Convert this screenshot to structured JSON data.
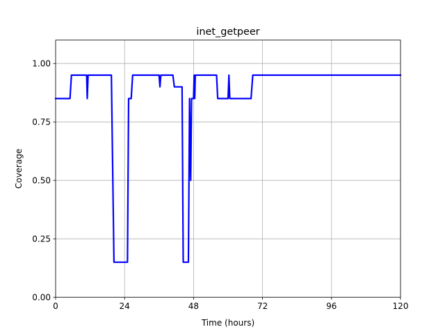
{
  "chart_data": {
    "type": "line",
    "title": "inet_getpeer",
    "xlabel": "Time (hours)",
    "ylabel": "Coverage",
    "xlim": [
      0,
      120
    ],
    "ylim": [
      0,
      1.1
    ],
    "x_ticks": [
      0,
      24,
      48,
      72,
      96,
      120
    ],
    "x_tick_labels": [
      "0",
      "24",
      "48",
      "72",
      "96",
      "120"
    ],
    "y_ticks": [
      0,
      0.25,
      0.5,
      0.75,
      1.0
    ],
    "y_tick_labels": [
      "0.00",
      "0.25",
      "0.50",
      "0.75",
      "1.00"
    ],
    "grid": true,
    "series": [
      {
        "color": "#0000ff",
        "x": [
          0,
          5,
          5.5,
          10.8,
          11,
          11.3,
          11.6,
          19.4,
          20.3,
          25,
          25.4,
          26.3,
          26.8,
          36,
          36.3,
          36.6,
          40.8,
          41.3,
          44,
          44.4,
          46.2,
          46.6,
          47,
          47.3,
          47.6,
          48,
          48.2,
          48.4,
          48.6,
          49,
          56,
          56.4,
          60,
          60.3,
          60.6,
          68,
          68.6,
          120
        ],
        "y": [
          0.85,
          0.85,
          0.95,
          0.95,
          0.85,
          0.95,
          0.95,
          0.95,
          0.15,
          0.15,
          0.85,
          0.85,
          0.95,
          0.95,
          0.9,
          0.95,
          0.95,
          0.9,
          0.9,
          0.15,
          0.15,
          0.85,
          0.5,
          0.85,
          0.85,
          0.85,
          0.95,
          0.85,
          0.95,
          0.95,
          0.95,
          0.85,
          0.85,
          0.95,
          0.85,
          0.85,
          0.95,
          0.95
        ]
      }
    ]
  }
}
